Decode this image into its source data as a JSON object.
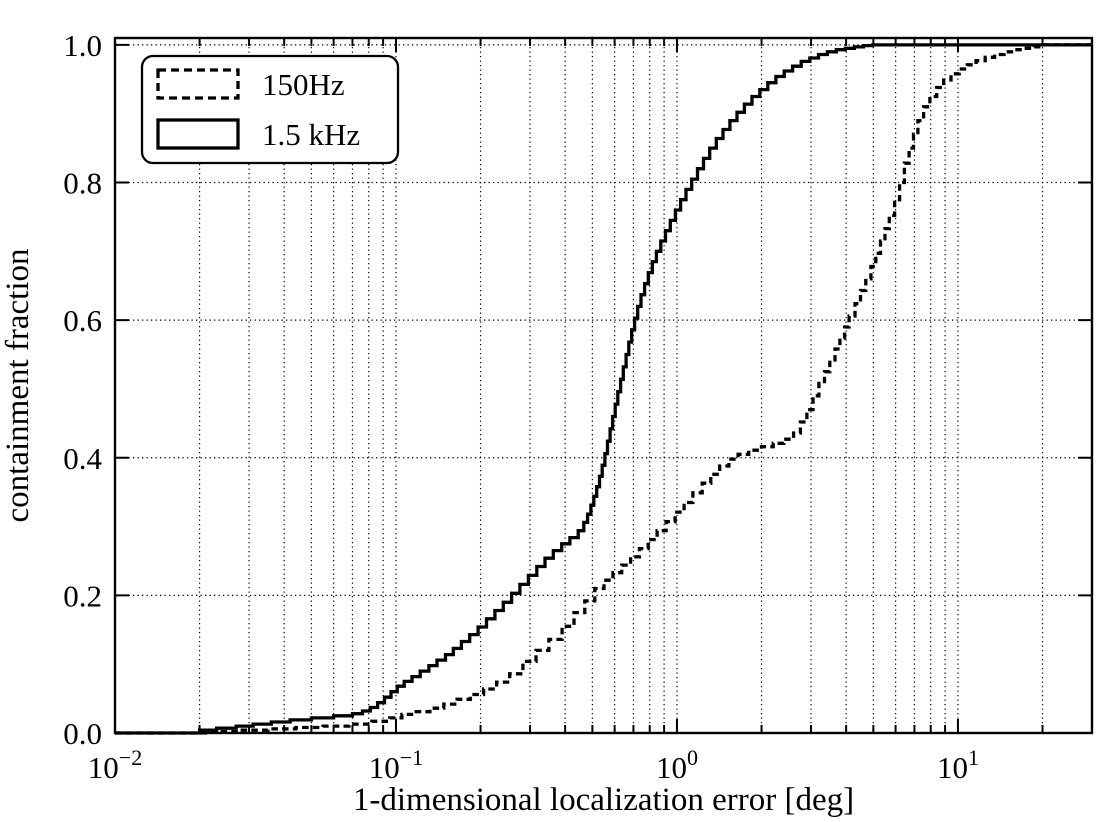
{
  "figure": {
    "background": "#ffffff",
    "foreground": "#000000"
  },
  "chart_data": {
    "type": "line",
    "subtype": "empirical-cdf-step",
    "title": "",
    "xlabel": "1-dimensional localization error [deg]",
    "ylabel": "containment fraction",
    "xscale": "log",
    "yscale": "linear",
    "xlim": [
      0.01,
      30
    ],
    "ylim": [
      0,
      1.01
    ],
    "grid": true,
    "grid_style": "dotted",
    "legend_position": "upper-left",
    "x_major_ticks": [
      {
        "value": 0.01,
        "base": "10",
        "exp": "−2"
      },
      {
        "value": 0.1,
        "base": "10",
        "exp": "−1"
      },
      {
        "value": 1,
        "base": "10",
        "exp": "0"
      },
      {
        "value": 10,
        "base": "10",
        "exp": "1"
      }
    ],
    "y_ticks": [
      {
        "value": 0.0,
        "label": "0.0"
      },
      {
        "value": 0.2,
        "label": "0.2"
      },
      {
        "value": 0.4,
        "label": "0.4"
      },
      {
        "value": 0.6,
        "label": "0.6"
      },
      {
        "value": 0.8,
        "label": "0.8"
      },
      {
        "value": 1.0,
        "label": "1.0"
      }
    ],
    "y_gridlines": [
      0.2,
      0.4,
      0.6,
      0.8,
      1.0
    ],
    "legend": {
      "entries": [
        {
          "label": "150Hz",
          "patch_style": "dashed"
        },
        {
          "label": "1.5 kHz",
          "patch_style": "solid"
        }
      ]
    },
    "series": [
      {
        "name": "150Hz",
        "style": "dashed",
        "draw": "steps-post",
        "color": "#000000",
        "points": [
          [
            0.022,
            0.002
          ],
          [
            0.028,
            0.004
          ],
          [
            0.035,
            0.006
          ],
          [
            0.044,
            0.008
          ],
          [
            0.055,
            0.01
          ],
          [
            0.068,
            0.013
          ],
          [
            0.082,
            0.017
          ],
          [
            0.095,
            0.022
          ],
          [
            0.105,
            0.027
          ],
          [
            0.118,
            0.031
          ],
          [
            0.132,
            0.036
          ],
          [
            0.148,
            0.042
          ],
          [
            0.165,
            0.049
          ],
          [
            0.184,
            0.056
          ],
          [
            0.205,
            0.064
          ],
          [
            0.228,
            0.074
          ],
          [
            0.254,
            0.086
          ],
          [
            0.283,
            0.104
          ],
          [
            0.315,
            0.12
          ],
          [
            0.35,
            0.136
          ],
          [
            0.39,
            0.155
          ],
          [
            0.43,
            0.175
          ],
          [
            0.47,
            0.192
          ],
          [
            0.51,
            0.21
          ],
          [
            0.55,
            0.222
          ],
          [
            0.592,
            0.233
          ],
          [
            0.636,
            0.244
          ],
          [
            0.684,
            0.256
          ],
          [
            0.735,
            0.268
          ],
          [
            0.79,
            0.281
          ],
          [
            0.85,
            0.294
          ],
          [
            0.915,
            0.307
          ],
          [
            0.985,
            0.321
          ],
          [
            1.06,
            0.335
          ],
          [
            1.14,
            0.349
          ],
          [
            1.23,
            0.363
          ],
          [
            1.32,
            0.376
          ],
          [
            1.42,
            0.388
          ],
          [
            1.53,
            0.398
          ],
          [
            1.65,
            0.405
          ],
          [
            1.8,
            0.411
          ],
          [
            2.0,
            0.416
          ],
          [
            2.2,
            0.421
          ],
          [
            2.4,
            0.427
          ],
          [
            2.6,
            0.436
          ],
          [
            2.75,
            0.452
          ],
          [
            2.9,
            0.47
          ],
          [
            3.05,
            0.49
          ],
          [
            3.2,
            0.508
          ],
          [
            3.35,
            0.525
          ],
          [
            3.5,
            0.542
          ],
          [
            3.65,
            0.558
          ],
          [
            3.8,
            0.574
          ],
          [
            3.95,
            0.59
          ],
          [
            4.1,
            0.606
          ],
          [
            4.3,
            0.624
          ],
          [
            4.5,
            0.643
          ],
          [
            4.7,
            0.66
          ],
          [
            4.9,
            0.678
          ],
          [
            5.1,
            0.697
          ],
          [
            5.3,
            0.715
          ],
          [
            5.5,
            0.733
          ],
          [
            5.7,
            0.752
          ],
          [
            5.95,
            0.775
          ],
          [
            6.2,
            0.8
          ],
          [
            6.45,
            0.828
          ],
          [
            6.7,
            0.85
          ],
          [
            6.95,
            0.87
          ],
          [
            7.2,
            0.89
          ],
          [
            7.55,
            0.91
          ],
          [
            7.95,
            0.925
          ],
          [
            8.4,
            0.938
          ],
          [
            8.9,
            0.949
          ],
          [
            9.45,
            0.958
          ],
          [
            10.1,
            0.965
          ],
          [
            10.8,
            0.971
          ],
          [
            11.6,
            0.977
          ],
          [
            12.5,
            0.982
          ],
          [
            13.5,
            0.986
          ],
          [
            14.6,
            0.99
          ],
          [
            15.8,
            0.993
          ],
          [
            17.2,
            0.995
          ],
          [
            18.7,
            0.997
          ],
          [
            20.2,
            1.0
          ]
        ]
      },
      {
        "name": "1.5 kHz",
        "style": "solid",
        "draw": "steps-post",
        "color": "#000000",
        "points": [
          [
            0.02,
            0.004
          ],
          [
            0.023,
            0.007
          ],
          [
            0.027,
            0.01
          ],
          [
            0.031,
            0.013
          ],
          [
            0.036,
            0.016
          ],
          [
            0.042,
            0.019
          ],
          [
            0.05,
            0.022
          ],
          [
            0.06,
            0.025
          ],
          [
            0.07,
            0.028
          ],
          [
            0.076,
            0.032
          ],
          [
            0.081,
            0.037
          ],
          [
            0.086,
            0.044
          ],
          [
            0.091,
            0.052
          ],
          [
            0.096,
            0.06
          ],
          [
            0.101,
            0.068
          ],
          [
            0.107,
            0.075
          ],
          [
            0.114,
            0.082
          ],
          [
            0.122,
            0.09
          ],
          [
            0.131,
            0.098
          ],
          [
            0.14,
            0.106
          ],
          [
            0.15,
            0.114
          ],
          [
            0.16,
            0.123
          ],
          [
            0.171,
            0.133
          ],
          [
            0.183,
            0.143
          ],
          [
            0.196,
            0.154
          ],
          [
            0.21,
            0.166
          ],
          [
            0.225,
            0.178
          ],
          [
            0.241,
            0.19
          ],
          [
            0.258,
            0.203
          ],
          [
            0.276,
            0.216
          ],
          [
            0.296,
            0.229
          ],
          [
            0.317,
            0.242
          ],
          [
            0.339,
            0.254
          ],
          [
            0.363,
            0.265
          ],
          [
            0.389,
            0.275
          ],
          [
            0.416,
            0.284
          ],
          [
            0.445,
            0.294
          ],
          [
            0.466,
            0.306
          ],
          [
            0.481,
            0.318
          ],
          [
            0.494,
            0.331
          ],
          [
            0.506,
            0.344
          ],
          [
            0.518,
            0.358
          ],
          [
            0.53,
            0.373
          ],
          [
            0.542,
            0.389
          ],
          [
            0.554,
            0.406
          ],
          [
            0.566,
            0.424
          ],
          [
            0.578,
            0.442
          ],
          [
            0.59,
            0.46
          ],
          [
            0.603,
            0.478
          ],
          [
            0.616,
            0.496
          ],
          [
            0.63,
            0.514
          ],
          [
            0.644,
            0.532
          ],
          [
            0.659,
            0.55
          ],
          [
            0.674,
            0.568
          ],
          [
            0.69,
            0.586
          ],
          [
            0.707,
            0.603
          ],
          [
            0.725,
            0.62
          ],
          [
            0.745,
            0.637
          ],
          [
            0.767,
            0.653
          ],
          [
            0.791,
            0.669
          ],
          [
            0.817,
            0.685
          ],
          [
            0.845,
            0.7
          ],
          [
            0.876,
            0.715
          ],
          [
            0.91,
            0.73
          ],
          [
            0.947,
            0.745
          ],
          [
            0.987,
            0.76
          ],
          [
            1.03,
            0.775
          ],
          [
            1.077,
            0.79
          ],
          [
            1.128,
            0.805
          ],
          [
            1.183,
            0.82
          ],
          [
            1.243,
            0.835
          ],
          [
            1.308,
            0.85
          ],
          [
            1.38,
            0.864
          ],
          [
            1.458,
            0.877
          ],
          [
            1.543,
            0.89
          ],
          [
            1.636,
            0.902
          ],
          [
            1.738,
            0.914
          ],
          [
            1.85,
            0.925
          ],
          [
            1.972,
            0.935
          ],
          [
            2.105,
            0.945
          ],
          [
            2.25,
            0.954
          ],
          [
            2.408,
            0.962
          ],
          [
            2.58,
            0.969
          ],
          [
            2.767,
            0.976
          ],
          [
            2.97,
            0.981
          ],
          [
            3.19,
            0.986
          ],
          [
            3.43,
            0.99
          ],
          [
            3.69,
            0.993
          ],
          [
            3.975,
            0.995
          ],
          [
            4.28,
            0.997
          ],
          [
            4.61,
            0.999
          ],
          [
            4.97,
            1.0
          ]
        ]
      }
    ]
  }
}
